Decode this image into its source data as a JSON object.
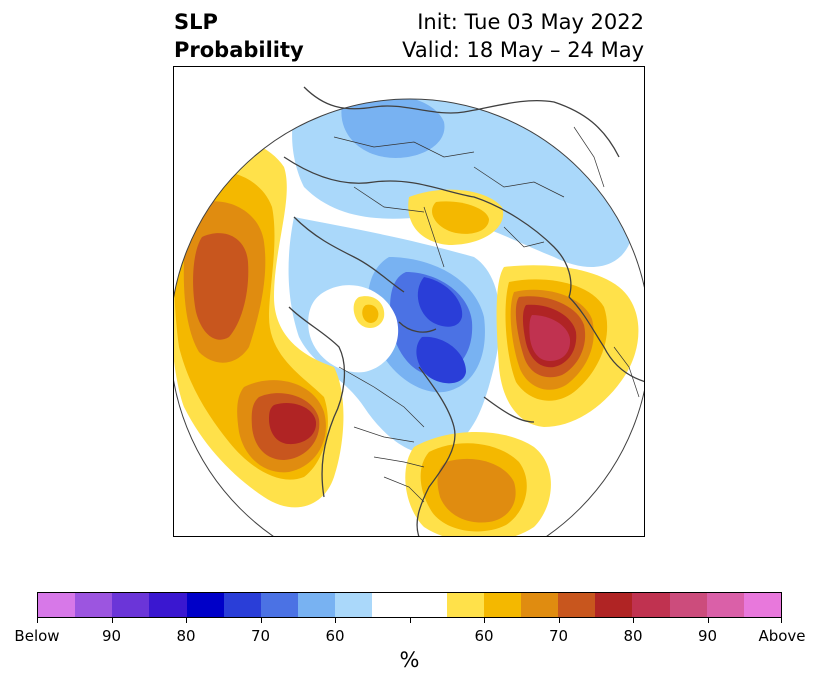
{
  "title": {
    "left_line1": "SLP",
    "left_line2": "Probability",
    "right_line1": "Init: Tue 03 May 2022",
    "right_line2": "Valid: 18 May – 24 May"
  },
  "colorbar": {
    "unit": "%",
    "colors": [
      "#d778e8",
      "#9c55e0",
      "#6b35d8",
      "#3a17d0",
      "#0000c8",
      "#2a3ed8",
      "#4b72e4",
      "#78b2f2",
      "#aad8fa",
      "#ffffff",
      "#ffe14a",
      "#f4b800",
      "#e08c10",
      "#c8561e",
      "#b02424",
      "#c03250",
      "#cc4c7c",
      "#da60a8",
      "#e878dc"
    ],
    "tick_labels": [
      "Below",
      "90",
      "80",
      "70",
      "60",
      "",
      "60",
      "70",
      "80",
      "90",
      "Above"
    ]
  },
  "colors": {
    "ocean": "#ffffff",
    "coast": "#404040",
    "land_borders": "#333333"
  }
}
